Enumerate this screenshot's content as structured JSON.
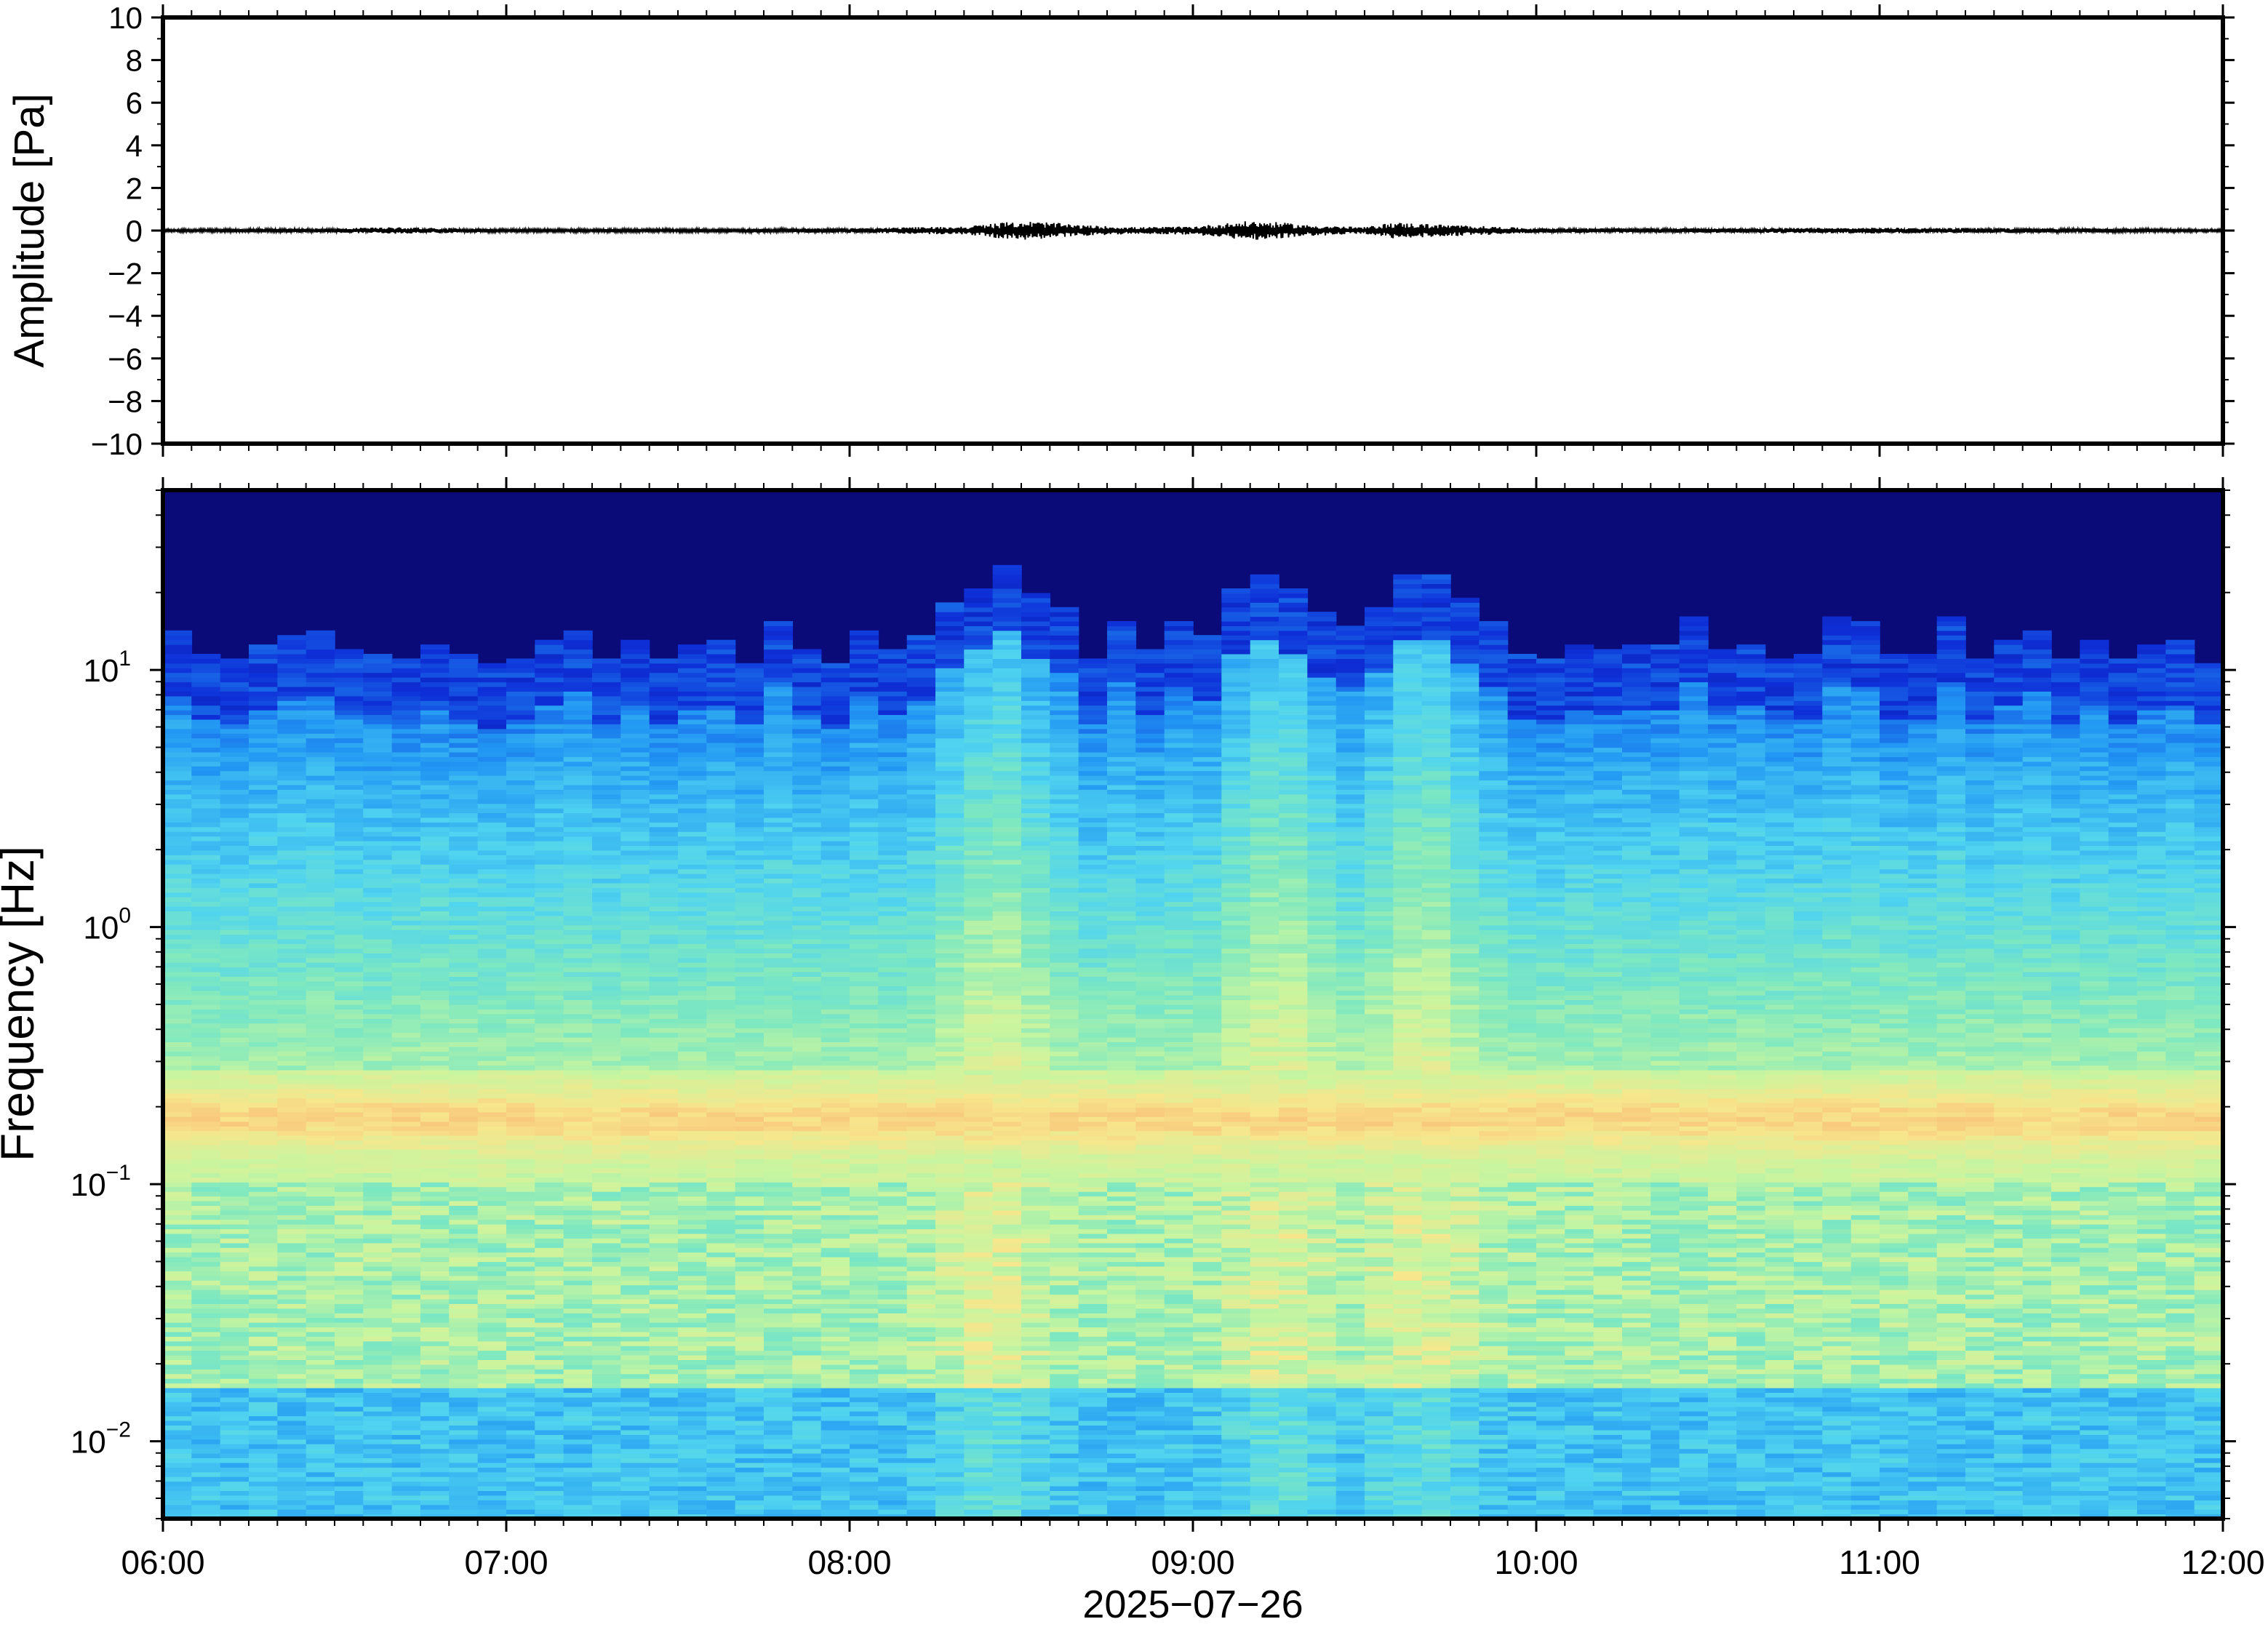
{
  "chart_data": [
    {
      "type": "line",
      "panel": "waveform",
      "ylabel": "Amplitude [Pa]",
      "ylim": [
        -10,
        10
      ],
      "yticks": [
        -10,
        -8,
        -6,
        -4,
        -2,
        0,
        2,
        4,
        6,
        8,
        10
      ],
      "ytick_labels": [
        "−10",
        "−8",
        "−6",
        "−4",
        "−2",
        "0",
        "2",
        "4",
        "6",
        "8",
        "10"
      ],
      "xlim": [
        "06:00",
        "12:00"
      ],
      "series": [
        {
          "x": [
            "06:00",
            "06:30",
            "06:40",
            "07:00",
            "07:30",
            "08:00",
            "08:20",
            "08:25",
            "08:30",
            "08:35",
            "08:40",
            "08:50",
            "09:00",
            "09:05",
            "09:10",
            "09:15",
            "09:20",
            "09:30",
            "09:35",
            "09:40",
            "10:00",
            "10:30",
            "11:00",
            "11:30",
            "12:00"
          ],
          "amplitude_envelope": [
            0.05,
            0.08,
            0.12,
            0.06,
            0.06,
            0.08,
            0.15,
            0.25,
            0.35,
            0.3,
            0.2,
            0.12,
            0.15,
            0.25,
            0.35,
            0.3,
            0.2,
            0.12,
            0.3,
            0.25,
            0.08,
            0.08,
            0.1,
            0.08,
            0.05
          ],
          "color": "#000000"
        }
      ]
    },
    {
      "type": "heatmap",
      "panel": "spectrogram",
      "ylabel": "Frequency [Hz]",
      "yscale": "log",
      "ylim": [
        0.005,
        50
      ],
      "yticks": [
        0.01,
        0.1,
        1,
        10
      ],
      "ytick_labels": [
        {
          "base": "10",
          "exp": "−2"
        },
        {
          "base": "10",
          "exp": "−1"
        },
        {
          "base": "10",
          "exp": "0"
        },
        {
          "base": "10",
          "exp": "1"
        }
      ],
      "x_tick_labels": [
        "06:00",
        "07:00",
        "08:00",
        "09:00",
        "10:00",
        "11:00",
        "12:00"
      ],
      "xlabel": "2025−07−26",
      "colormap": "jet-like",
      "colors": [
        "#0a0a78",
        "#0e2fd8",
        "#2196f3",
        "#4fd3f0",
        "#7ee8c0",
        "#c8f5a0",
        "#f7e68c",
        "#f9b070"
      ],
      "microbarom_band_hz": 0.18,
      "high_energy_columns": [
        "08:25",
        "09:15",
        "09:40"
      ]
    }
  ]
}
